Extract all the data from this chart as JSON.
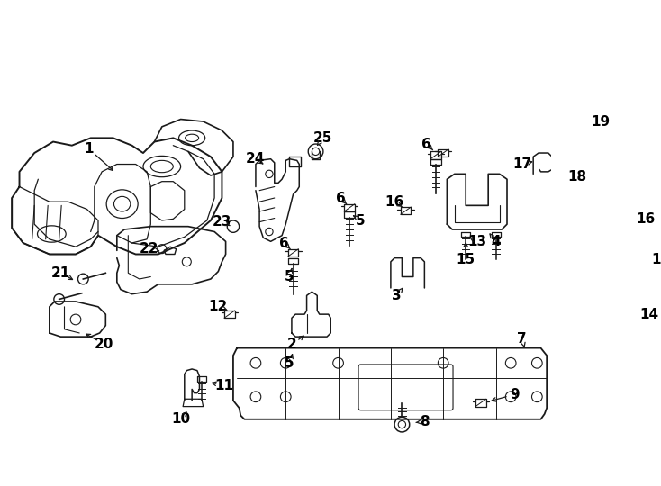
{
  "background_color": "#ffffff",
  "line_color": "#1a1a1a",
  "text_color": "#000000",
  "fig_width": 7.34,
  "fig_height": 5.4,
  "dpi": 100,
  "lw": 1.1,
  "font_size": 11
}
